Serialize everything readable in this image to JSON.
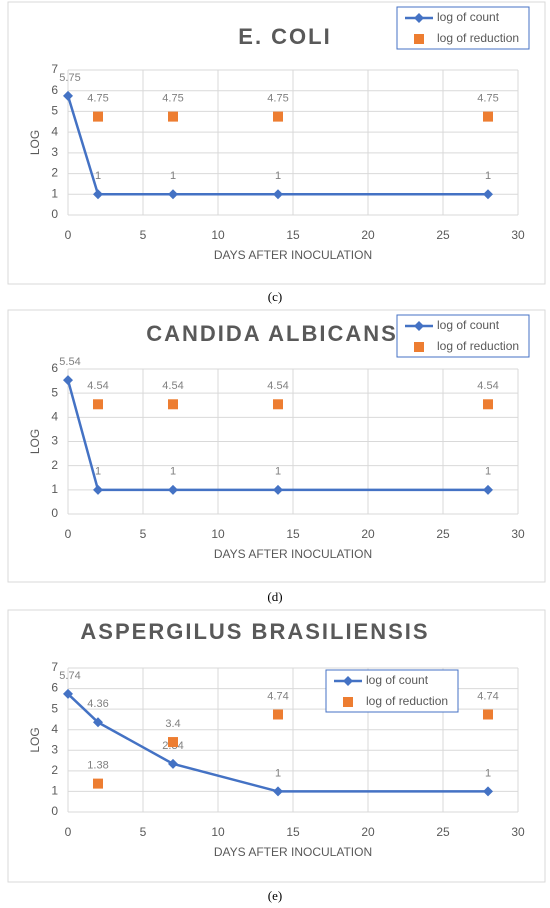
{
  "chart_data": [
    {
      "type": "line",
      "title": "E. COLI",
      "caption": "(c)",
      "xlabel": "DAYS AFTER INOCULATION",
      "ylabel": "LOG",
      "x": [
        0,
        2,
        7,
        14,
        28
      ],
      "series": [
        {
          "name": "log of count",
          "color": "#4472c4",
          "marker": "diamond",
          "line": true,
          "values": [
            5.75,
            1,
            1,
            1,
            1
          ]
        },
        {
          "name": "log of reduction",
          "color": "#ed7d31",
          "marker": "square",
          "line": false,
          "values": [
            null,
            4.75,
            4.75,
            4.75,
            4.75
          ]
        }
      ],
      "xlim": [
        0,
        30
      ],
      "xticks": [
        0,
        5,
        10,
        15,
        20,
        25,
        30
      ],
      "ylim": [
        0,
        7
      ],
      "yticks": [
        0,
        1,
        2,
        3,
        4,
        5,
        6,
        7
      ],
      "grid": true,
      "legend": "top-right"
    },
    {
      "type": "line",
      "title": "CANDIDA ALBICANS",
      "caption": "(d)",
      "xlabel": "DAYS AFTER INOCULATION",
      "ylabel": "LOG",
      "x": [
        0,
        2,
        7,
        14,
        28
      ],
      "series": [
        {
          "name": "log of count",
          "color": "#4472c4",
          "marker": "diamond",
          "line": true,
          "values": [
            5.54,
            1,
            1,
            1,
            1
          ]
        },
        {
          "name": "log of reduction",
          "color": "#ed7d31",
          "marker": "square",
          "line": false,
          "values": [
            null,
            4.54,
            4.54,
            4.54,
            4.54
          ]
        }
      ],
      "xlim": [
        0,
        30
      ],
      "xticks": [
        0,
        5,
        10,
        15,
        20,
        25,
        30
      ],
      "ylim": [
        0,
        6
      ],
      "yticks": [
        0,
        1,
        2,
        3,
        4,
        5,
        6
      ],
      "grid": true,
      "legend": "top-right"
    },
    {
      "type": "line",
      "title": "ASPERGILUS BRASILIENSIS",
      "caption": "(e)",
      "xlabel": "DAYS AFTER INOCULATION",
      "ylabel": "LOG",
      "x": [
        0,
        2,
        7,
        14,
        28
      ],
      "series": [
        {
          "name": "log of count",
          "color": "#4472c4",
          "marker": "diamond",
          "line": true,
          "values": [
            5.74,
            4.36,
            2.34,
            1,
            1
          ]
        },
        {
          "name": "log of reduction",
          "color": "#ed7d31",
          "marker": "square",
          "line": false,
          "values": [
            null,
            1.38,
            3.4,
            4.74,
            4.74
          ]
        }
      ],
      "xlim": [
        0,
        30
      ],
      "xticks": [
        0,
        5,
        10,
        15,
        20,
        25,
        30
      ],
      "ylim": [
        0,
        7
      ],
      "yticks": [
        0,
        1,
        2,
        3,
        4,
        5,
        6,
        7
      ],
      "grid": true,
      "legend": "center-right"
    }
  ]
}
